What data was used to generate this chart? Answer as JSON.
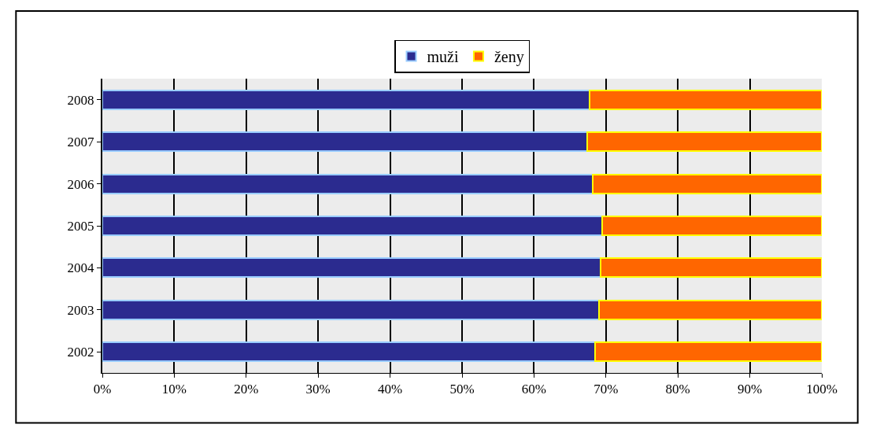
{
  "chart_data": {
    "type": "bar",
    "orientation": "horizontal",
    "stacked": true,
    "categories": [
      "2008",
      "2007",
      "2006",
      "2005",
      "2004",
      "2003",
      "2002"
    ],
    "series": [
      {
        "name": "muži",
        "color": "#2b2b8f",
        "values": [
          67.7,
          67.4,
          68.2,
          69.5,
          69.3,
          69.0,
          68.5
        ]
      },
      {
        "name": "ženy",
        "color": "#ff6600",
        "values": [
          32.3,
          32.6,
          31.8,
          30.5,
          30.7,
          31.0,
          31.5
        ]
      }
    ],
    "xlim": [
      0,
      100
    ],
    "xticks": [
      {
        "value": 0,
        "label": "0%"
      },
      {
        "value": 10,
        "label": "10%"
      },
      {
        "value": 20,
        "label": "20%"
      },
      {
        "value": 30,
        "label": "30%"
      },
      {
        "value": 40,
        "label": "40%"
      },
      {
        "value": 50,
        "label": "50%"
      },
      {
        "value": 60,
        "label": "60%"
      },
      {
        "value": 70,
        "label": "70%"
      },
      {
        "value": 80,
        "label": "80%"
      },
      {
        "value": 90,
        "label": "90%"
      },
      {
        "value": 100,
        "label": "100%"
      }
    ],
    "grid": "x",
    "legend": "top"
  }
}
